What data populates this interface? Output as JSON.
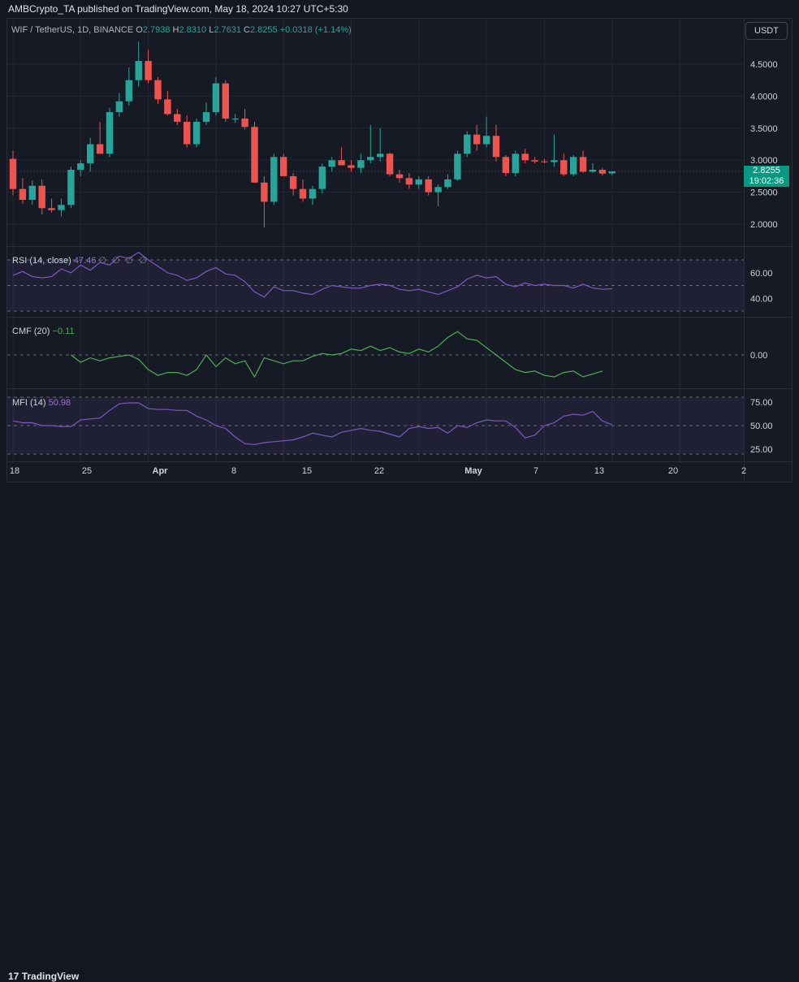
{
  "header": {
    "published_text": "AMBCrypto_TA published on TradingView.com, May 18, 2024 10:27 UTC+5:30"
  },
  "legend": {
    "symbol": "WIF / TetherUS, 1D, BINANCE",
    "o_label": "O",
    "o_value": "2.7938",
    "h_label": "H",
    "h_value": "2.8310",
    "l_label": "L",
    "l_value": "2.7631",
    "c_label": "C",
    "c_value": "2.8255",
    "change": "+0.0318 (+1.14%)"
  },
  "currency_button": "USDT",
  "last_price": {
    "value": "2.8255",
    "countdown": "19:02:36"
  },
  "indicators": {
    "rsi": {
      "label": "RSI (14, close)",
      "value": "47.46",
      "extra": "∅ ∅ ∅ ∅"
    },
    "cmf": {
      "label": "CMF (20)",
      "value": "−0.11"
    },
    "mfi": {
      "label": "MFI (14)",
      "value": "50.98"
    }
  },
  "footer": {
    "brand": "TradingView"
  },
  "colors": {
    "up": "#26a69a",
    "down": "#ef5350",
    "rsi": "#7e57c2",
    "cmf": "#4caf50",
    "mfi": "#7e57c2",
    "background": "#161a25"
  },
  "chart_data": [
    {
      "type": "candlestick",
      "title": "WIF / TetherUS, 1D, BINANCE",
      "x_tick_labels": [
        "18",
        "25",
        "Apr",
        "8",
        "15",
        "22",
        "May",
        "7",
        "13",
        "20",
        "2"
      ],
      "y_tick_labels": [
        "2.0000",
        "2.5000",
        "3.0000",
        "3.5000",
        "4.0000",
        "4.5000"
      ],
      "ylim": [
        1.7,
        4.9
      ],
      "candles": [
        {
          "o": 3.02,
          "h": 3.15,
          "l": 2.45,
          "c": 2.55
        },
        {
          "o": 2.55,
          "h": 2.72,
          "l": 2.32,
          "c": 2.38
        },
        {
          "o": 2.38,
          "h": 2.68,
          "l": 2.3,
          "c": 2.6
        },
        {
          "o": 2.6,
          "h": 2.7,
          "l": 2.15,
          "c": 2.25
        },
        {
          "o": 2.25,
          "h": 2.4,
          "l": 2.18,
          "c": 2.22
        },
        {
          "o": 2.22,
          "h": 2.4,
          "l": 2.12,
          "c": 2.3
        },
        {
          "o": 2.3,
          "h": 2.9,
          "l": 2.25,
          "c": 2.85
        },
        {
          "o": 2.85,
          "h": 3.0,
          "l": 2.75,
          "c": 2.95
        },
        {
          "o": 2.95,
          "h": 3.35,
          "l": 2.82,
          "c": 3.25
        },
        {
          "o": 3.25,
          "h": 3.6,
          "l": 3.1,
          "c": 3.1
        },
        {
          "o": 3.1,
          "h": 3.82,
          "l": 3.05,
          "c": 3.75
        },
        {
          "o": 3.75,
          "h": 4.05,
          "l": 3.68,
          "c": 3.92
        },
        {
          "o": 3.92,
          "h": 4.45,
          "l": 3.85,
          "c": 4.25
        },
        {
          "o": 4.25,
          "h": 4.85,
          "l": 4.15,
          "c": 4.55
        },
        {
          "o": 4.55,
          "h": 4.72,
          "l": 4.2,
          "c": 4.25
        },
        {
          "o": 4.25,
          "h": 4.3,
          "l": 3.88,
          "c": 3.95
        },
        {
          "o": 3.95,
          "h": 4.08,
          "l": 3.7,
          "c": 3.72
        },
        {
          "o": 3.72,
          "h": 3.8,
          "l": 3.55,
          "c": 3.6
        },
        {
          "o": 3.6,
          "h": 3.7,
          "l": 3.2,
          "c": 3.25
        },
        {
          "o": 3.25,
          "h": 3.65,
          "l": 3.2,
          "c": 3.6
        },
        {
          "o": 3.6,
          "h": 3.9,
          "l": 3.55,
          "c": 3.75
        },
        {
          "o": 3.75,
          "h": 4.3,
          "l": 3.7,
          "c": 4.2
        },
        {
          "o": 4.2,
          "h": 4.25,
          "l": 3.6,
          "c": 3.65
        },
        {
          "o": 3.65,
          "h": 3.72,
          "l": 3.58,
          "c": 3.65
        },
        {
          "o": 3.65,
          "h": 3.8,
          "l": 3.48,
          "c": 3.52
        },
        {
          "o": 3.52,
          "h": 3.6,
          "l": 2.65,
          "c": 2.65
        },
        {
          "o": 2.65,
          "h": 2.75,
          "l": 1.95,
          "c": 2.35
        },
        {
          "o": 2.35,
          "h": 3.1,
          "l": 2.3,
          "c": 3.05
        },
        {
          "o": 3.05,
          "h": 3.1,
          "l": 2.75,
          "c": 2.75
        },
        {
          "o": 2.75,
          "h": 2.8,
          "l": 2.45,
          "c": 2.55
        },
        {
          "o": 2.55,
          "h": 2.7,
          "l": 2.35,
          "c": 2.4
        },
        {
          "o": 2.4,
          "h": 2.6,
          "l": 2.3,
          "c": 2.55
        },
        {
          "o": 2.55,
          "h": 2.95,
          "l": 2.48,
          "c": 2.9
        },
        {
          "o": 2.9,
          "h": 3.05,
          "l": 2.82,
          "c": 3.0
        },
        {
          "o": 3.0,
          "h": 3.2,
          "l": 2.92,
          "c": 2.92
        },
        {
          "o": 2.92,
          "h": 3.0,
          "l": 2.82,
          "c": 2.88
        },
        {
          "o": 2.88,
          "h": 3.1,
          "l": 2.8,
          "c": 3.0
        },
        {
          "o": 3.0,
          "h": 3.55,
          "l": 2.95,
          "c": 3.05
        },
        {
          "o": 3.05,
          "h": 3.5,
          "l": 2.98,
          "c": 3.1
        },
        {
          "o": 3.1,
          "h": 3.12,
          "l": 2.75,
          "c": 2.78
        },
        {
          "o": 2.78,
          "h": 2.85,
          "l": 2.65,
          "c": 2.72
        },
        {
          "o": 2.72,
          "h": 2.8,
          "l": 2.55,
          "c": 2.62
        },
        {
          "o": 2.62,
          "h": 2.75,
          "l": 2.55,
          "c": 2.7
        },
        {
          "o": 2.7,
          "h": 2.75,
          "l": 2.45,
          "c": 2.5
        },
        {
          "o": 2.5,
          "h": 2.62,
          "l": 2.28,
          "c": 2.58
        },
        {
          "o": 2.58,
          "h": 2.78,
          "l": 2.55,
          "c": 2.7
        },
        {
          "o": 2.7,
          "h": 3.15,
          "l": 2.68,
          "c": 3.1
        },
        {
          "o": 3.1,
          "h": 3.45,
          "l": 3.05,
          "c": 3.4
        },
        {
          "o": 3.4,
          "h": 3.55,
          "l": 3.15,
          "c": 3.25
        },
        {
          "o": 3.25,
          "h": 3.68,
          "l": 3.2,
          "c": 3.38
        },
        {
          "o": 3.38,
          "h": 3.55,
          "l": 2.98,
          "c": 3.05
        },
        {
          "o": 3.05,
          "h": 3.08,
          "l": 2.75,
          "c": 2.8
        },
        {
          "o": 2.8,
          "h": 3.15,
          "l": 2.75,
          "c": 3.1
        },
        {
          "o": 3.1,
          "h": 3.18,
          "l": 2.95,
          "c": 3.0
        },
        {
          "o": 3.0,
          "h": 3.05,
          "l": 2.95,
          "c": 2.98
        },
        {
          "o": 2.98,
          "h": 3.02,
          "l": 2.95,
          "c": 2.97
        },
        {
          "o": 2.97,
          "h": 3.4,
          "l": 2.9,
          "c": 3.0
        },
        {
          "o": 3.0,
          "h": 3.1,
          "l": 2.75,
          "c": 2.78
        },
        {
          "o": 2.78,
          "h": 3.08,
          "l": 2.75,
          "c": 3.05
        },
        {
          "o": 3.05,
          "h": 3.15,
          "l": 2.8,
          "c": 2.82
        },
        {
          "o": 2.82,
          "h": 2.95,
          "l": 2.8,
          "c": 2.85
        },
        {
          "o": 2.85,
          "h": 2.88,
          "l": 2.76,
          "c": 2.79
        },
        {
          "o": 2.7938,
          "h": 2.831,
          "l": 2.7631,
          "c": 2.8255
        }
      ]
    },
    {
      "type": "line",
      "title": "RSI (14, close)",
      "y_tick_labels": [
        "40.00",
        "60.00"
      ],
      "ylim": [
        25,
        78
      ],
      "bands": [
        70,
        50,
        30
      ],
      "series": [
        {
          "values": [
            58,
            61,
            57,
            56,
            57,
            63,
            60,
            66,
            62,
            68,
            66,
            73,
            71,
            76,
            70,
            65,
            60,
            58,
            54,
            56,
            61,
            64,
            59,
            58,
            53,
            45,
            41,
            49,
            46,
            46,
            44,
            43,
            47,
            50,
            49,
            48,
            48,
            50,
            51,
            50,
            47,
            46,
            47,
            45,
            43,
            46,
            49,
            55,
            58,
            56,
            57,
            51,
            49,
            52,
            50,
            51,
            50,
            50,
            48,
            51,
            48,
            47,
            47.46
          ]
        }
      ]
    },
    {
      "type": "line",
      "title": "CMF (20)",
      "y_tick_labels": [
        "0.00"
      ],
      "ylim": [
        -0.2,
        0.2
      ],
      "bands": [
        0
      ],
      "series": [
        {
          "values": [
            null,
            null,
            null,
            null,
            null,
            null,
            0.0,
            -0.05,
            -0.02,
            -0.04,
            -0.02,
            -0.01,
            0.0,
            -0.03,
            -0.1,
            -0.14,
            -0.12,
            -0.12,
            -0.14,
            -0.1,
            0.0,
            -0.08,
            -0.02,
            -0.06,
            -0.04,
            -0.15,
            -0.02,
            -0.04,
            -0.06,
            -0.04,
            -0.04,
            -0.01,
            0.01,
            0.0,
            0.01,
            0.04,
            0.03,
            0.06,
            0.03,
            0.05,
            0.02,
            0.01,
            0.04,
            0.02,
            0.06,
            0.12,
            0.16,
            0.11,
            0.1,
            0.05,
            0.0,
            -0.05,
            -0.1,
            -0.12,
            -0.11,
            -0.14,
            -0.15,
            -0.12,
            -0.11,
            -0.15,
            -0.13,
            -0.11
          ]
        }
      ]
    },
    {
      "type": "line",
      "title": "MFI (14)",
      "y_tick_labels": [
        "25.00",
        "50.00",
        "75.00"
      ],
      "ylim": [
        17,
        83
      ],
      "bands": [
        80,
        50,
        20
      ],
      "series": [
        {
          "values": [
            55,
            53,
            53,
            50,
            50,
            49,
            49,
            56,
            57,
            58,
            66,
            73,
            74,
            74,
            68,
            67,
            67,
            66,
            66,
            60,
            56,
            50,
            47,
            38,
            31,
            30,
            32,
            33,
            34,
            35,
            38,
            42,
            40,
            38,
            43,
            45,
            47,
            45,
            44,
            41,
            38,
            47,
            49,
            47,
            48,
            42,
            50,
            48,
            53,
            56,
            55,
            55,
            48,
            37,
            40,
            50,
            53,
            60,
            62,
            61,
            65,
            55,
            50.98
          ]
        }
      ]
    }
  ]
}
